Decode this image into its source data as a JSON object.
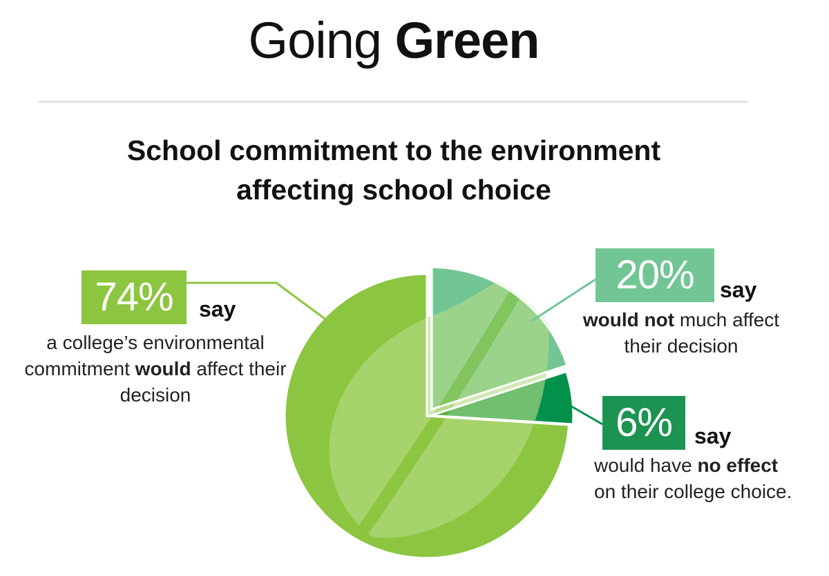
{
  "header": {
    "title_light": "Going",
    "title_bold": "Green"
  },
  "chart_data": {
    "type": "pie",
    "title": "School commitment to the environment affecting school choice",
    "title_lines": [
      "School commitment to the environment",
      "affecting school choice"
    ],
    "categories": [
      "would",
      "would not much",
      "no effect"
    ],
    "values": [
      74,
      20,
      6
    ],
    "colors": {
      "would": "#8cc540",
      "would_not": "#72c594",
      "no_effect": "#01914a",
      "leaf_light": "#b6dc86",
      "leaf_vein": "#8cc540",
      "outline": "#ffffff"
    },
    "slices": [
      {
        "value": 74,
        "pct_label": "74%",
        "say": "say",
        "desc_parts": [
          "a college’s environmental commitment ",
          "would",
          " affect their decision"
        ],
        "color": "#8cc540"
      },
      {
        "value": 20,
        "pct_label": "20%",
        "say": "say",
        "desc_parts": [
          "",
          "would not",
          " much affect their decision"
        ],
        "color": "#72c594"
      },
      {
        "value": 6,
        "pct_label": "6%",
        "say": "say",
        "desc_parts": [
          "would have ",
          "no effect",
          " on their college choice."
        ],
        "color": "#01914a"
      }
    ]
  }
}
